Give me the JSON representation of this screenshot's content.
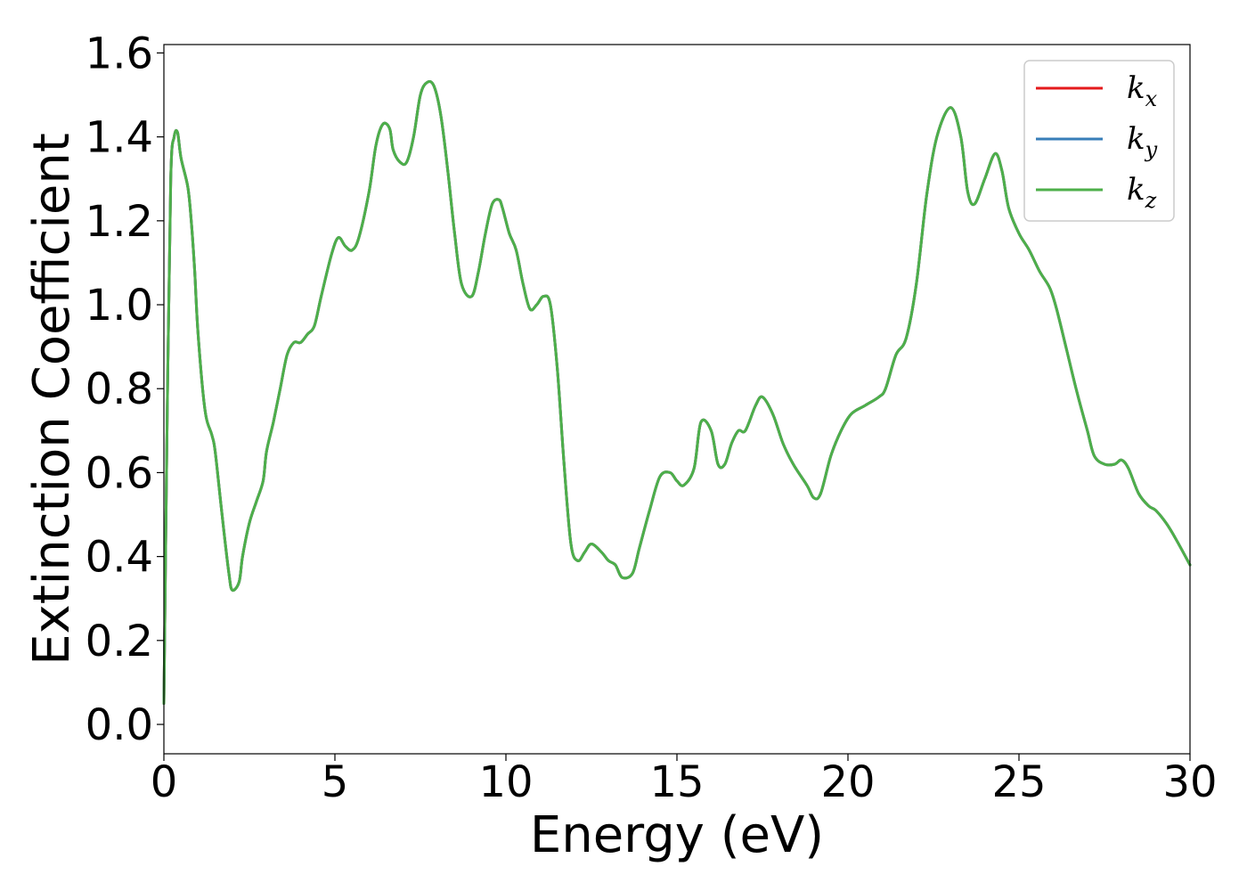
{
  "chart_data": {
    "type": "line",
    "title": "",
    "xlabel": "Energy (eV)",
    "ylabel": "Extinction Coefficient",
    "xlim": [
      0,
      30
    ],
    "ylim": [
      -0.07,
      1.62
    ],
    "xticks": [
      0,
      5,
      10,
      15,
      20,
      25,
      30
    ],
    "xtick_labels": [
      "0",
      "5",
      "10",
      "15",
      "20",
      "25",
      "30"
    ],
    "yticks": [
      0.0,
      0.2,
      0.4,
      0.6,
      0.8,
      1.0,
      1.2,
      1.4,
      1.6
    ],
    "ytick_labels": [
      "0.0",
      "0.2",
      "0.4",
      "0.6",
      "0.8",
      "1.0",
      "1.2",
      "1.4",
      "1.6"
    ],
    "grid": false,
    "legend_position": "top-right",
    "x": [
      0.0,
      0.1,
      0.2,
      0.3,
      0.4,
      0.5,
      0.7,
      0.8,
      0.9,
      1.0,
      1.2,
      1.4,
      1.5,
      1.7,
      1.9,
      2.0,
      2.2,
      2.3,
      2.5,
      2.7,
      2.9,
      3.0,
      3.2,
      3.4,
      3.6,
      3.8,
      4.0,
      4.2,
      4.4,
      4.6,
      4.9,
      5.1,
      5.3,
      5.5,
      5.7,
      6.0,
      6.2,
      6.4,
      6.6,
      6.7,
      6.9,
      7.1,
      7.3,
      7.5,
      7.7,
      7.9,
      8.1,
      8.3,
      8.5,
      8.7,
      9.0,
      9.2,
      9.4,
      9.6,
      9.8,
      9.9,
      10.1,
      10.3,
      10.5,
      10.7,
      10.9,
      11.1,
      11.3,
      11.5,
      11.7,
      11.9,
      12.1,
      12.3,
      12.5,
      12.8,
      13.0,
      13.2,
      13.4,
      13.7,
      13.9,
      14.2,
      14.5,
      14.8,
      15.0,
      15.2,
      15.5,
      15.7,
      16.0,
      16.2,
      16.4,
      16.6,
      16.8,
      17.0,
      17.3,
      17.5,
      17.8,
      18.1,
      18.4,
      18.8,
      19.0,
      19.2,
      19.5,
      19.8,
      20.1,
      20.5,
      20.9,
      21.1,
      21.4,
      21.7,
      22.0,
      22.3,
      22.6,
      23.0,
      23.3,
      23.5,
      23.7,
      24.0,
      24.3,
      24.5,
      24.7,
      25.0,
      25.3,
      25.6,
      25.9,
      26.1,
      26.4,
      26.7,
      27.0,
      27.2,
      27.5,
      27.8,
      28.0,
      28.2,
      28.5,
      28.8,
      29.0,
      29.3,
      29.6,
      30.0
    ],
    "series": [
      {
        "name": "k_x",
        "color": "#e41a1c",
        "y": [
          0.05,
          0.75,
          1.3,
          1.4,
          1.41,
          1.35,
          1.28,
          1.2,
          1.08,
          0.93,
          0.75,
          0.69,
          0.65,
          0.5,
          0.36,
          0.32,
          0.34,
          0.4,
          0.48,
          0.53,
          0.58,
          0.65,
          0.72,
          0.8,
          0.88,
          0.91,
          0.91,
          0.93,
          0.95,
          1.02,
          1.12,
          1.16,
          1.14,
          1.13,
          1.16,
          1.27,
          1.38,
          1.43,
          1.42,
          1.37,
          1.34,
          1.34,
          1.4,
          1.5,
          1.53,
          1.52,
          1.45,
          1.32,
          1.17,
          1.05,
          1.02,
          1.08,
          1.17,
          1.24,
          1.25,
          1.23,
          1.17,
          1.13,
          1.05,
          0.99,
          1.0,
          1.02,
          1.0,
          0.85,
          0.62,
          0.43,
          0.39,
          0.41,
          0.43,
          0.41,
          0.39,
          0.38,
          0.35,
          0.36,
          0.42,
          0.51,
          0.59,
          0.6,
          0.58,
          0.57,
          0.61,
          0.72,
          0.7,
          0.62,
          0.62,
          0.67,
          0.7,
          0.7,
          0.76,
          0.78,
          0.74,
          0.67,
          0.62,
          0.57,
          0.54,
          0.55,
          0.64,
          0.7,
          0.74,
          0.76,
          0.78,
          0.8,
          0.88,
          0.92,
          1.05,
          1.26,
          1.4,
          1.47,
          1.4,
          1.27,
          1.24,
          1.3,
          1.36,
          1.32,
          1.23,
          1.17,
          1.13,
          1.08,
          1.04,
          0.99,
          0.89,
          0.79,
          0.7,
          0.64,
          0.62,
          0.62,
          0.63,
          0.61,
          0.55,
          0.52,
          0.51,
          0.48,
          0.44,
          0.38
        ]
      },
      {
        "name": "k_y",
        "color": "#377eb8",
        "y": [
          0.05,
          0.75,
          1.3,
          1.4,
          1.41,
          1.35,
          1.28,
          1.2,
          1.08,
          0.93,
          0.75,
          0.69,
          0.65,
          0.5,
          0.36,
          0.32,
          0.34,
          0.4,
          0.48,
          0.53,
          0.58,
          0.65,
          0.72,
          0.8,
          0.88,
          0.91,
          0.91,
          0.93,
          0.95,
          1.02,
          1.12,
          1.16,
          1.14,
          1.13,
          1.16,
          1.27,
          1.38,
          1.43,
          1.42,
          1.37,
          1.34,
          1.34,
          1.4,
          1.5,
          1.53,
          1.52,
          1.45,
          1.32,
          1.17,
          1.05,
          1.02,
          1.08,
          1.17,
          1.24,
          1.25,
          1.23,
          1.17,
          1.13,
          1.05,
          0.99,
          1.0,
          1.02,
          1.0,
          0.85,
          0.62,
          0.43,
          0.39,
          0.41,
          0.43,
          0.41,
          0.39,
          0.38,
          0.35,
          0.36,
          0.42,
          0.51,
          0.59,
          0.6,
          0.58,
          0.57,
          0.61,
          0.72,
          0.7,
          0.62,
          0.62,
          0.67,
          0.7,
          0.7,
          0.76,
          0.78,
          0.74,
          0.67,
          0.62,
          0.57,
          0.54,
          0.55,
          0.64,
          0.7,
          0.74,
          0.76,
          0.78,
          0.8,
          0.88,
          0.92,
          1.05,
          1.26,
          1.4,
          1.47,
          1.4,
          1.27,
          1.24,
          1.3,
          1.36,
          1.32,
          1.23,
          1.17,
          1.13,
          1.08,
          1.04,
          0.99,
          0.89,
          0.79,
          0.7,
          0.64,
          0.62,
          0.62,
          0.63,
          0.61,
          0.55,
          0.52,
          0.51,
          0.48,
          0.44,
          0.38
        ]
      },
      {
        "name": "k_z",
        "color": "#4daf4a",
        "y": [
          0.05,
          0.75,
          1.3,
          1.4,
          1.41,
          1.35,
          1.28,
          1.2,
          1.08,
          0.93,
          0.75,
          0.69,
          0.65,
          0.5,
          0.36,
          0.32,
          0.34,
          0.4,
          0.48,
          0.53,
          0.58,
          0.65,
          0.72,
          0.8,
          0.88,
          0.91,
          0.91,
          0.93,
          0.95,
          1.02,
          1.12,
          1.16,
          1.14,
          1.13,
          1.16,
          1.27,
          1.38,
          1.43,
          1.42,
          1.37,
          1.34,
          1.34,
          1.4,
          1.5,
          1.53,
          1.52,
          1.45,
          1.32,
          1.17,
          1.05,
          1.02,
          1.08,
          1.17,
          1.24,
          1.25,
          1.23,
          1.17,
          1.13,
          1.05,
          0.99,
          1.0,
          1.02,
          1.0,
          0.85,
          0.62,
          0.43,
          0.39,
          0.41,
          0.43,
          0.41,
          0.39,
          0.38,
          0.35,
          0.36,
          0.42,
          0.51,
          0.59,
          0.6,
          0.58,
          0.57,
          0.61,
          0.72,
          0.7,
          0.62,
          0.62,
          0.67,
          0.7,
          0.7,
          0.76,
          0.78,
          0.74,
          0.67,
          0.62,
          0.57,
          0.54,
          0.55,
          0.64,
          0.7,
          0.74,
          0.76,
          0.78,
          0.8,
          0.88,
          0.92,
          1.05,
          1.26,
          1.4,
          1.47,
          1.4,
          1.27,
          1.24,
          1.3,
          1.36,
          1.32,
          1.23,
          1.17,
          1.13,
          1.08,
          1.04,
          0.99,
          0.89,
          0.79,
          0.7,
          0.64,
          0.62,
          0.62,
          0.63,
          0.61,
          0.55,
          0.52,
          0.51,
          0.48,
          0.44,
          0.38
        ]
      }
    ],
    "legend": [
      {
        "base": "k",
        "sub": "x",
        "color": "#e41a1c"
      },
      {
        "base": "k",
        "sub": "y",
        "color": "#377eb8"
      },
      {
        "base": "k",
        "sub": "z",
        "color": "#4daf4a"
      }
    ]
  }
}
